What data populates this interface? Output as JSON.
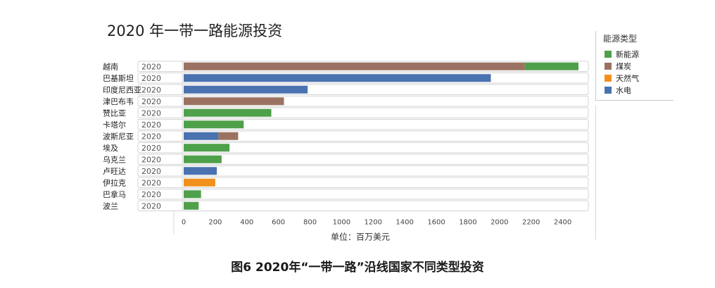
{
  "chart_data": {
    "type": "bar",
    "orientation": "horizontal",
    "stacked": true,
    "title": "2020 年一带一路能源投资",
    "xlabel": "单位：百万美元",
    "xlim": [
      0,
      2500
    ],
    "xticks": [
      "0",
      "200",
      "400",
      "600",
      "800",
      "1000",
      "1200",
      "1400",
      "1600",
      "1800",
      "2000",
      "2200",
      "2400"
    ],
    "year_column_label": "2020",
    "categories": [
      "越南",
      "巴基斯坦",
      "印度尼西亚",
      "津巴布韦",
      "赞比亚",
      "卡塔尔",
      "波斯尼亚",
      "埃及",
      "乌克兰",
      "卢旺达",
      "伊拉克",
      "巴拿马",
      "波兰"
    ],
    "series": [
      {
        "name": "新能源",
        "color": "#4fa04a",
        "values": [
          340,
          0,
          0,
          0,
          555,
          380,
          0,
          290,
          240,
          0,
          0,
          110,
          95
        ]
      },
      {
        "name": "煤炭",
        "color": "#9b7261",
        "values": [
          2160,
          0,
          0,
          635,
          0,
          0,
          125,
          0,
          0,
          0,
          0,
          0,
          0
        ]
      },
      {
        "name": "天然气",
        "color": "#f0901d",
        "values": [
          0,
          0,
          0,
          0,
          0,
          0,
          0,
          0,
          0,
          0,
          200,
          0,
          0
        ]
      },
      {
        "name": "水电",
        "color": "#4a72b0",
        "values": [
          0,
          1945,
          785,
          0,
          0,
          0,
          220,
          0,
          0,
          210,
          0,
          0,
          0
        ]
      }
    ],
    "stack_order": [
      [
        "煤炭",
        "新能源"
      ],
      [
        "水电"
      ],
      [
        "水电"
      ],
      [
        "煤炭"
      ],
      [
        "新能源"
      ],
      [
        "新能源"
      ],
      [
        "水电",
        "煤炭"
      ],
      [
        "新能源"
      ],
      [
        "新能源"
      ],
      [
        "水电"
      ],
      [
        "天然气"
      ],
      [
        "新能源"
      ],
      [
        "新能源"
      ]
    ],
    "legend": {
      "title": "能源类型",
      "position": "top-right"
    },
    "grid": false
  },
  "caption": "图6 2020年“一带一路”沿线国家不同类型投资"
}
